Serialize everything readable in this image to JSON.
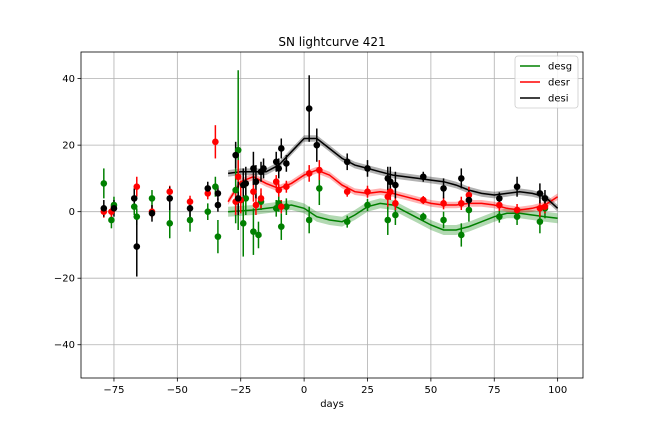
{
  "chart_data": {
    "type": "scatter",
    "title": "SN lightcurve 421",
    "xlabel": "days",
    "ylabel": "",
    "xlim": [
      -88,
      110
    ],
    "ylim": [
      -50,
      48
    ],
    "xticks": [
      -75,
      -50,
      -25,
      0,
      25,
      50,
      75,
      100
    ],
    "yticks": [
      -40,
      -20,
      0,
      20,
      40
    ],
    "grid": true,
    "legend_position": "top-right",
    "series": [
      {
        "name": "desg",
        "color": "#008000",
        "points": [
          {
            "x": -79,
            "y": 8.5,
            "err": 4.5
          },
          {
            "x": -76,
            "y": -2.5,
            "err": 2.5
          },
          {
            "x": -75,
            "y": 2,
            "err": 2.5
          },
          {
            "x": -67,
            "y": 1.5,
            "err": 2.5
          },
          {
            "x": -66,
            "y": -1.5,
            "err": 2.5
          },
          {
            "x": -60,
            "y": 4,
            "err": 2.5
          },
          {
            "x": -53,
            "y": -3.5,
            "err": 4.5
          },
          {
            "x": -45,
            "y": -2.5,
            "err": 3.5
          },
          {
            "x": -38,
            "y": 0,
            "err": 2.5
          },
          {
            "x": -35,
            "y": 7.5,
            "err": 3
          },
          {
            "x": -34,
            "y": -7.5,
            "err": 5
          },
          {
            "x": -27,
            "y": 6.5,
            "err": 10
          },
          {
            "x": -26,
            "y": 18.5,
            "err": 24
          },
          {
            "x": -24,
            "y": -3.5,
            "err": 10
          },
          {
            "x": -23,
            "y": 4,
            "err": 5
          },
          {
            "x": -20,
            "y": -6,
            "err": 7
          },
          {
            "x": -18,
            "y": -7,
            "err": 4
          },
          {
            "x": -17,
            "y": 3,
            "err": 2.5
          },
          {
            "x": -11,
            "y": 1,
            "err": 2.5
          },
          {
            "x": -10,
            "y": 2.5,
            "err": 2.5
          },
          {
            "x": -9,
            "y": -4.5,
            "err": 4
          },
          {
            "x": -7,
            "y": 1.5,
            "err": 2.5
          },
          {
            "x": 2,
            "y": -2.5,
            "err": 4
          },
          {
            "x": 6,
            "y": 7,
            "err": 5
          },
          {
            "x": 17,
            "y": -3,
            "err": 1.8
          },
          {
            "x": 25,
            "y": 2,
            "err": 1.8
          },
          {
            "x": 33,
            "y": -2.5,
            "err": 4.5
          },
          {
            "x": 36,
            "y": -1,
            "err": 3
          },
          {
            "x": 47,
            "y": -1.5,
            "err": 1.2
          },
          {
            "x": 55,
            "y": -2.5,
            "err": 2.5
          },
          {
            "x": 62,
            "y": -7,
            "err": 3.5
          },
          {
            "x": 65,
            "y": 0.5,
            "err": 3.5
          },
          {
            "x": 77,
            "y": -1.5,
            "err": 1.8
          },
          {
            "x": 84,
            "y": -1.5,
            "err": 2.5
          },
          {
            "x": 93,
            "y": -3,
            "err": 3.5
          },
          {
            "x": 95,
            "y": 1,
            "err": 3
          }
        ],
        "model": {
          "x": [
            -30,
            -20,
            -10,
            -5,
            0,
            5,
            10,
            15,
            20,
            25,
            30,
            35,
            40,
            45,
            50,
            55,
            60,
            65,
            70,
            75,
            80,
            85,
            90,
            95,
            100
          ],
          "y": [
            0,
            0.5,
            1.5,
            2,
            1,
            -1.5,
            -2.5,
            -3,
            -1,
            1.5,
            2.5,
            2,
            0,
            -2,
            -4,
            -5.5,
            -5.5,
            -4.5,
            -3,
            -1.5,
            -0.5,
            -0.5,
            -1,
            -1.5,
            -2
          ],
          "band": 1.5
        }
      },
      {
        "name": "desr",
        "color": "#ff0000",
        "points": [
          {
            "x": -79,
            "y": 0,
            "err": 1.8
          },
          {
            "x": -76,
            "y": 0,
            "err": 1.8
          },
          {
            "x": -66,
            "y": 7.5,
            "err": 3
          },
          {
            "x": -60,
            "y": 0,
            "err": 1.8
          },
          {
            "x": -53,
            "y": 6,
            "err": 1.8
          },
          {
            "x": -45,
            "y": 3,
            "err": 1.8
          },
          {
            "x": -38,
            "y": 5.5,
            "err": 1.8
          },
          {
            "x": -35,
            "y": 21,
            "err": 5
          },
          {
            "x": -27,
            "y": 3,
            "err": 4
          },
          {
            "x": -26,
            "y": 10.5,
            "err": 5
          },
          {
            "x": -25,
            "y": 3.5,
            "err": 4
          },
          {
            "x": -20,
            "y": 6,
            "err": 3
          },
          {
            "x": -19,
            "y": 2,
            "err": 3
          },
          {
            "x": -17,
            "y": 4,
            "err": 3
          },
          {
            "x": -11,
            "y": 9,
            "err": 2
          },
          {
            "x": -10,
            "y": 6.5,
            "err": 2
          },
          {
            "x": -9,
            "y": 1.5,
            "err": 2
          },
          {
            "x": -7,
            "y": 7.5,
            "err": 1.8
          },
          {
            "x": 2,
            "y": 11.5,
            "err": 2.5
          },
          {
            "x": 6,
            "y": 12.5,
            "err": 3
          },
          {
            "x": 17,
            "y": 6,
            "err": 1.5
          },
          {
            "x": 25,
            "y": 6,
            "err": 1.8
          },
          {
            "x": 33,
            "y": 4.5,
            "err": 3
          },
          {
            "x": 34,
            "y": 6,
            "err": 2.5
          },
          {
            "x": 36,
            "y": 2.5,
            "err": 2
          },
          {
            "x": 47,
            "y": 3.5,
            "err": 1.2
          },
          {
            "x": 55,
            "y": 2.5,
            "err": 1.8
          },
          {
            "x": 62,
            "y": 2.5,
            "err": 2
          },
          {
            "x": 65,
            "y": 5,
            "err": 2.5
          },
          {
            "x": 77,
            "y": 2,
            "err": 1.8
          },
          {
            "x": 84,
            "y": 0.5,
            "err": 1.8
          },
          {
            "x": 93,
            "y": 1,
            "err": 2.5
          },
          {
            "x": 95,
            "y": 1.5,
            "err": 2
          }
        ],
        "model": {
          "x": [
            -30,
            -25,
            -20,
            -15,
            -10,
            -5,
            0,
            5,
            10,
            15,
            20,
            25,
            30,
            35,
            40,
            45,
            50,
            55,
            60,
            65,
            70,
            75,
            80,
            85,
            90,
            95,
            100
          ],
          "y": [
            3,
            9,
            10.5,
            8.5,
            7,
            8.5,
            11,
            12.5,
            11,
            8,
            6,
            5.5,
            6,
            5.5,
            4.5,
            3.5,
            2.5,
            2,
            2,
            2.5,
            2.5,
            2,
            1,
            0.5,
            1,
            2,
            4.5
          ],
          "band": 1
        }
      },
      {
        "name": "desi",
        "color": "#000000",
        "points": [
          {
            "x": -79,
            "y": 1,
            "err": 2.5
          },
          {
            "x": -75,
            "y": 1,
            "err": 2.5
          },
          {
            "x": -67,
            "y": 4,
            "err": 3
          },
          {
            "x": -66,
            "y": -10.5,
            "err": 9
          },
          {
            "x": -60,
            "y": -0.5,
            "err": 2.5
          },
          {
            "x": -53,
            "y": 4,
            "err": 3.5
          },
          {
            "x": -45,
            "y": 1,
            "err": 3
          },
          {
            "x": -38,
            "y": 7,
            "err": 2
          },
          {
            "x": -34,
            "y": 5.5,
            "err": 2
          },
          {
            "x": -34,
            "y": 2,
            "err": 2
          },
          {
            "x": -27,
            "y": 17,
            "err": 4
          },
          {
            "x": -26,
            "y": 4,
            "err": 5
          },
          {
            "x": -24,
            "y": 8,
            "err": 5
          },
          {
            "x": -23,
            "y": 8.5,
            "err": 5
          },
          {
            "x": -20,
            "y": 13,
            "err": 5
          },
          {
            "x": -19,
            "y": 9,
            "err": 5
          },
          {
            "x": -17,
            "y": 12,
            "err": 3
          },
          {
            "x": -16,
            "y": 13,
            "err": 3
          },
          {
            "x": -11,
            "y": 15,
            "err": 3
          },
          {
            "x": -10,
            "y": 13,
            "err": 3
          },
          {
            "x": -9,
            "y": 19,
            "err": 3
          },
          {
            "x": -7,
            "y": 14.5,
            "err": 2.5
          },
          {
            "x": 2,
            "y": 31,
            "err": 10
          },
          {
            "x": 5,
            "y": 20,
            "err": 5
          },
          {
            "x": 17,
            "y": 15,
            "err": 2.5
          },
          {
            "x": 25,
            "y": 13,
            "err": 2.5
          },
          {
            "x": 33,
            "y": 10,
            "err": 3.5
          },
          {
            "x": 34,
            "y": 9,
            "err": 4.5
          },
          {
            "x": 36,
            "y": 8,
            "err": 4
          },
          {
            "x": 47,
            "y": 10.5,
            "err": 1.5
          },
          {
            "x": 55,
            "y": 7,
            "err": 3
          },
          {
            "x": 62,
            "y": 10,
            "err": 3
          },
          {
            "x": 65,
            "y": 3.5,
            "err": 3
          },
          {
            "x": 77,
            "y": 4,
            "err": 1.8
          },
          {
            "x": 84,
            "y": 7.5,
            "err": 3
          },
          {
            "x": 93,
            "y": 5.5,
            "err": 3
          },
          {
            "x": 95,
            "y": 4,
            "err": 2.5
          }
        ],
        "model": {
          "x": [
            -30,
            -25,
            -20,
            -15,
            -10,
            -5,
            0,
            5,
            10,
            15,
            20,
            25,
            30,
            35,
            40,
            45,
            50,
            55,
            60,
            65,
            70,
            75,
            80,
            85,
            90,
            95,
            100
          ],
          "y": [
            11.5,
            12,
            12,
            12,
            14,
            18,
            22,
            22,
            19,
            16,
            14,
            13,
            12,
            11,
            10.5,
            10,
            9.5,
            9,
            8,
            6.5,
            5.5,
            5,
            5.5,
            6,
            5.5,
            4.5,
            1
          ],
          "band": 1
        }
      }
    ]
  }
}
